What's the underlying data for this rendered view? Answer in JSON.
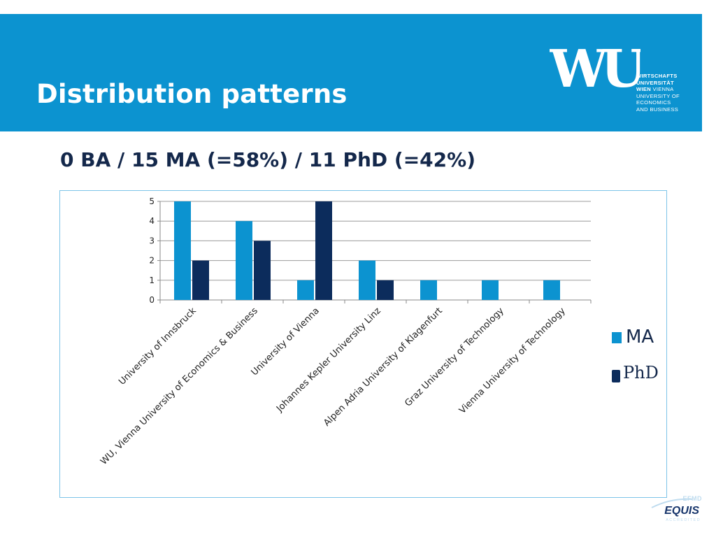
{
  "header": {
    "title": "Distribution patterns",
    "logo_mark": "WU",
    "logo_lines": [
      "WIRTSCHAFTS",
      "UNIVERSITÄT",
      "WIEN",
      "VIENNA",
      "UNIVERSITY OF",
      "ECONOMICS",
      "AND BUSINESS"
    ]
  },
  "subtitle": "0 BA / 15 MA (=58%) / 11 PhD (=42%)",
  "chart_data": {
    "type": "bar",
    "categories": [
      "University of Innsbruck",
      "WU, Vienna University of Economics & Business",
      "University of Vienna",
      "Johannes Kepler University Linz",
      "Alpen Adria University of Klagenfurt",
      "Graz University of Technology",
      "Vienna University of Technology"
    ],
    "series": [
      {
        "name": "MA",
        "color": "#0c93d0",
        "values": [
          5,
          4,
          1,
          2,
          1,
          1,
          1
        ]
      },
      {
        "name": "PhD",
        "color": "#0c2c5c",
        "values": [
          2,
          3,
          5,
          1,
          0,
          0,
          0
        ]
      }
    ],
    "yticks": [
      0,
      1,
      2,
      3,
      4,
      5
    ],
    "ylim": [
      0,
      5
    ],
    "grid": true,
    "legend_position": "right"
  },
  "footer": {
    "accreditor_org": "EFMD",
    "accreditor": "EQUIS",
    "accreditor_status": "ACCREDITED"
  }
}
